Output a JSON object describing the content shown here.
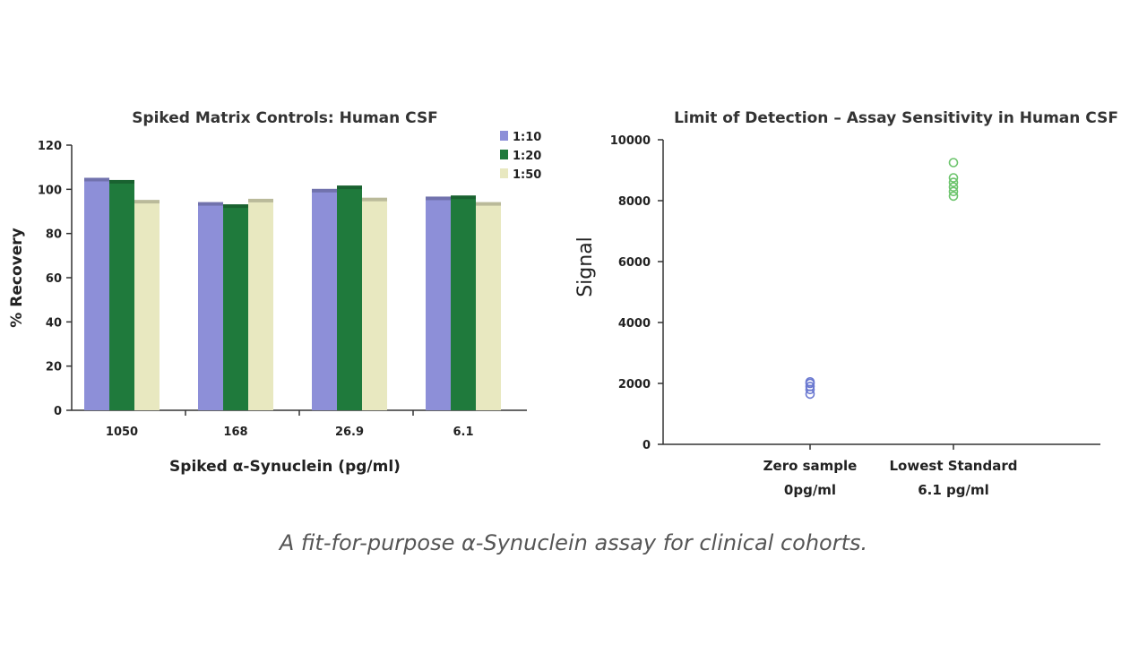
{
  "caption": "A fit-for-purpose α-Synuclein assay for clinical cohorts.",
  "chart_data": [
    {
      "type": "bar",
      "title": "Spiked Matrix Controls: Human CSF",
      "xlabel": "Spiked α-Synuclein (pg/ml)",
      "ylabel": "% Recovery",
      "categories": [
        "1050",
        "168",
        "26.9",
        "6.1"
      ],
      "series": [
        {
          "name": "1:10",
          "color": "#8d8fd8",
          "values": [
            104,
            93,
            99,
            95.5
          ]
        },
        {
          "name": "1:20",
          "color": "#1f7a3c",
          "values": [
            103,
            92,
            100.5,
            96
          ]
        },
        {
          "name": "1:50",
          "color": "#e8e8c0",
          "values": [
            94,
            94.5,
            95,
            93
          ]
        }
      ],
      "ylim": [
        0,
        120
      ],
      "yticks": [
        0,
        20,
        40,
        60,
        80,
        100,
        120
      ],
      "legend": "top-right",
      "grid": false
    },
    {
      "type": "scatter",
      "title": "Limit of Detection – Assay Sensitivity in Human CSF",
      "xlabel": "",
      "ylabel": "Signal",
      "categories": [
        {
          "line1": "Zero sample",
          "line2": "0pg/ml"
        },
        {
          "line1": "Lowest Standard",
          "line2": "6.1 pg/ml"
        }
      ],
      "series": [
        {
          "category_index": 0,
          "color": "#6a78d0",
          "values": [
            1650,
            1800,
            1900,
            2000,
            2050
          ]
        },
        {
          "category_index": 1,
          "color": "#6cc46c",
          "values": [
            8150,
            8300,
            8450,
            8600,
            8750,
            9250
          ]
        }
      ],
      "ylim": [
        0,
        10000
      ],
      "yticks": [
        0,
        2000,
        4000,
        6000,
        8000,
        10000
      ],
      "grid": false
    }
  ]
}
